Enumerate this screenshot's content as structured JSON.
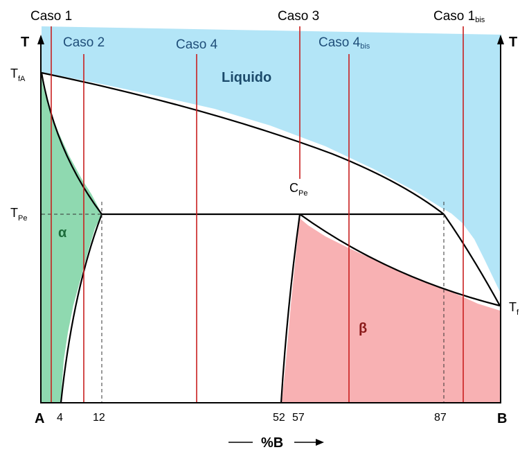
{
  "axes": {
    "left_T": "T",
    "right_T": "T",
    "corner_A": "A",
    "corner_B": "B",
    "x_axis_label": "%B",
    "ticks": [
      "4",
      "12",
      "52",
      "57",
      "87"
    ]
  },
  "temperatures": {
    "TfA_main": "T",
    "TfA_sub": "fA",
    "TPe_main": "T",
    "TPe_sub": "Pe",
    "TfB_main": "T",
    "TfB_sub": "f"
  },
  "peritectic_point": {
    "main": "C",
    "sub": "Pe"
  },
  "phases": {
    "liquid": "Liquido",
    "alpha": "α",
    "beta": "β"
  },
  "cases": {
    "caso1": "Caso 1",
    "caso2": "Caso 2",
    "caso3": "Caso 3",
    "caso4": "Caso 4",
    "caso4bis_main": "Caso 4",
    "caso4bis_sub": "bis",
    "caso1bis_main": "Caso 1",
    "caso1bis_sub": "bis"
  },
  "colors": {
    "liquid_region": "#b3e5f7",
    "alpha_region": "#8fd9b0",
    "beta_region": "#f8b1b3",
    "case_lines": "#c81e1e",
    "liquid_label": "#1b4a6b",
    "alpha_label": "#1c6b3a",
    "beta_label": "#8b1a1a"
  }
}
